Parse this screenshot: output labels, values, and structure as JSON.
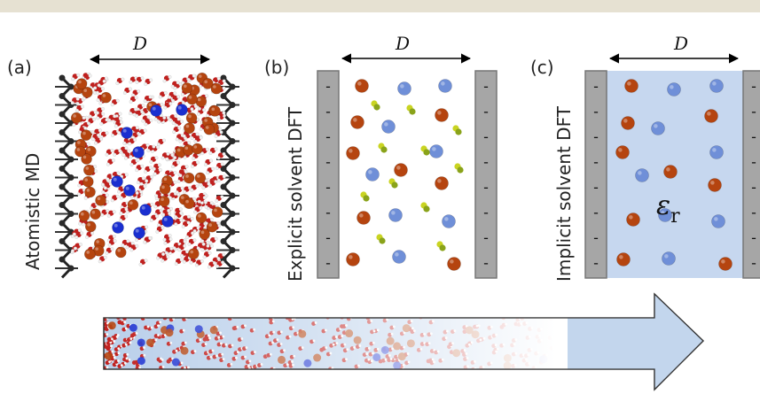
{
  "panels": [
    {
      "letter": "(a)",
      "side_label": "Atomistic MD",
      "width_label": "D"
    },
    {
      "letter": "(b)",
      "side_label": "Explicit solvent DFT",
      "width_label": "D"
    },
    {
      "letter": "(c)",
      "side_label": "Implicit solvent DFT",
      "width_label": "D"
    }
  ],
  "electrode_charge": "-",
  "permittivity": {
    "symbol": "ε",
    "subscript": "r"
  },
  "colors": {
    "cation": "#b5440f",
    "anion": "#6f8fd8",
    "md_anion": "#1a2fd0",
    "water_o": "#c0201e",
    "water_h": "#f2f2f2",
    "solvent_dipole": "#c9d422",
    "electrode": "#a6a6a6",
    "implicit_solvent": "#c6d7ef",
    "arrow": "#b9cfea",
    "header": "#e6e1d2"
  }
}
